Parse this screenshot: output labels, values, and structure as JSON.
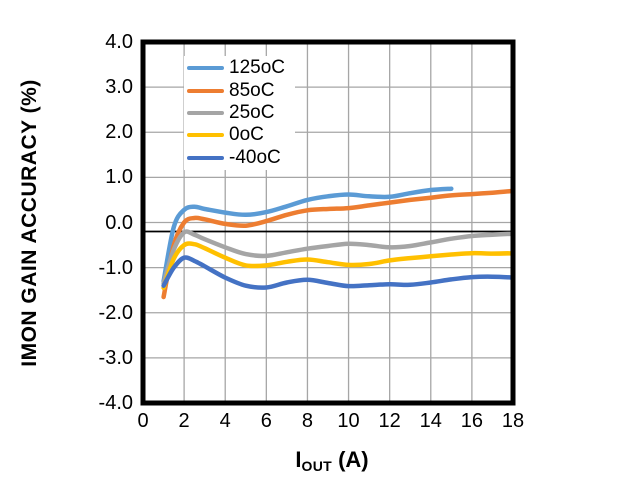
{
  "chart_data": {
    "type": "line",
    "title": "",
    "ylabel": "IMON GAIN ACCURACY (%)",
    "xlabel": {
      "main": "I",
      "sub": "OUT",
      "rest": " (A)"
    },
    "xlim": [
      0,
      18
    ],
    "ylim": [
      -4,
      4
    ],
    "x_ticks": [
      "0",
      "2",
      "4",
      "6",
      "8",
      "10",
      "12",
      "14",
      "16",
      "18"
    ],
    "x_tick_values": [
      0,
      2,
      4,
      6,
      8,
      10,
      12,
      14,
      16,
      18
    ],
    "y_ticks": [
      "4.0",
      "3.0",
      "2.0",
      "1.0",
      "0.0",
      "-1.0",
      "-2.0",
      "-3.0",
      "-4.0"
    ],
    "y_tick_values": [
      4,
      3,
      2,
      1,
      0,
      -1,
      -2,
      -3,
      -4
    ],
    "grid": true,
    "grid_color": "#a6a6a6",
    "axis_color": "#000000",
    "plot_border_color": "#000000",
    "reference_line_y": -0.2,
    "legend_position": "top-left-inside",
    "series": [
      {
        "name": "125oC",
        "color": "#5B9BD5",
        "x": [
          1,
          1.5,
          2,
          2.5,
          3,
          4,
          5,
          6,
          7,
          8,
          9,
          10,
          11,
          12,
          13,
          14,
          15
        ],
        "y": [
          -1.3,
          -0.1,
          0.28,
          0.35,
          0.3,
          0.22,
          0.17,
          0.23,
          0.36,
          0.5,
          0.58,
          0.62,
          0.58,
          0.57,
          0.65,
          0.72,
          0.75
        ]
      },
      {
        "name": "85oC",
        "color": "#ED7D31",
        "x": [
          1,
          1.5,
          2,
          2.5,
          3,
          4,
          5,
          6,
          7,
          8,
          9,
          10,
          11,
          12,
          13,
          14,
          15,
          16,
          17,
          18
        ],
        "y": [
          -1.65,
          -0.5,
          0.0,
          0.1,
          0.07,
          -0.03,
          -0.07,
          0.03,
          0.17,
          0.27,
          0.3,
          0.32,
          0.38,
          0.44,
          0.5,
          0.55,
          0.6,
          0.63,
          0.66,
          0.7
        ]
      },
      {
        "name": "25oC",
        "color": "#A5A5A5",
        "x": [
          1,
          1.5,
          2,
          2.5,
          3,
          4,
          5,
          6,
          7,
          8,
          9,
          10,
          11,
          12,
          13,
          14,
          15,
          16,
          17,
          18
        ],
        "y": [
          -1.35,
          -0.6,
          -0.22,
          -0.27,
          -0.37,
          -0.55,
          -0.7,
          -0.74,
          -0.66,
          -0.58,
          -0.52,
          -0.47,
          -0.5,
          -0.55,
          -0.52,
          -0.44,
          -0.36,
          -0.3,
          -0.27,
          -0.25
        ]
      },
      {
        "name": "0oC",
        "color": "#FFC000",
        "x": [
          1,
          1.5,
          2,
          2.5,
          3,
          4,
          5,
          6,
          7,
          8,
          9,
          10,
          11,
          12,
          13,
          14,
          15,
          16,
          17,
          18
        ],
        "y": [
          -1.45,
          -0.8,
          -0.5,
          -0.48,
          -0.57,
          -0.78,
          -0.95,
          -0.95,
          -0.87,
          -0.82,
          -0.88,
          -0.94,
          -0.92,
          -0.84,
          -0.79,
          -0.75,
          -0.71,
          -0.68,
          -0.69,
          -0.68
        ]
      },
      {
        "name": "-40oC",
        "color": "#4472C4",
        "x": [
          1,
          1.5,
          2,
          2.5,
          3,
          4,
          5,
          6,
          7,
          8,
          9,
          10,
          11,
          12,
          13,
          14,
          15,
          16,
          17,
          18
        ],
        "y": [
          -1.4,
          -1.0,
          -0.78,
          -0.85,
          -0.97,
          -1.22,
          -1.4,
          -1.44,
          -1.33,
          -1.27,
          -1.34,
          -1.41,
          -1.39,
          -1.37,
          -1.38,
          -1.33,
          -1.26,
          -1.21,
          -1.2,
          -1.22
        ]
      }
    ]
  }
}
